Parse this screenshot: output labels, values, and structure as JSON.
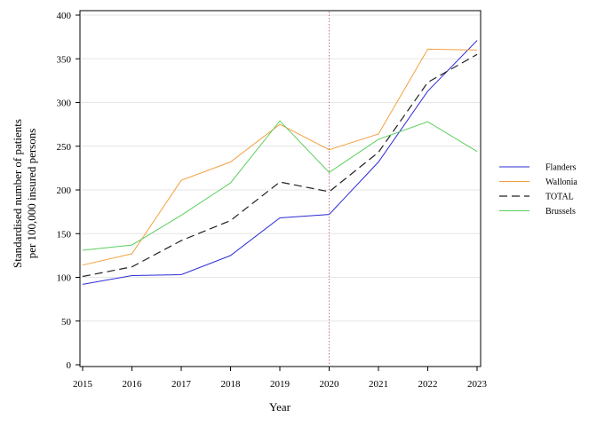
{
  "chart_data": {
    "type": "line",
    "xlabel": "Year",
    "ylabel_lines": [
      "Standardised number of patients",
      "per 100,000 insured persons"
    ],
    "x": [
      "2015",
      "2016",
      "2017",
      "2018",
      "2019",
      "2020",
      "2021",
      "2022",
      "2023"
    ],
    "yticks": [
      0,
      50,
      100,
      150,
      200,
      250,
      300,
      350,
      400
    ],
    "ylim": [
      0,
      400
    ],
    "grid": "horizontal",
    "legend_position": "right",
    "reference_line": {
      "x": "2020",
      "color": "#d46a7a",
      "style": "dotted"
    },
    "series": [
      {
        "name": "Flanders",
        "color": "#2b2bd6",
        "dash": "solid",
        "values": [
          92,
          102,
          103,
          125,
          168,
          172,
          232,
          313,
          371
        ]
      },
      {
        "name": "Wallonia",
        "color": "#f4a040",
        "dash": "solid",
        "values": [
          114,
          127,
          211,
          232,
          275,
          246,
          264,
          361,
          360
        ]
      },
      {
        "name": "TOTAL",
        "color": "#222222",
        "dash": "dashed",
        "values": [
          101,
          112,
          142,
          165,
          209,
          198,
          243,
          323,
          355
        ]
      },
      {
        "name": "Brussels",
        "color": "#5cce5c",
        "dash": "solid",
        "values": [
          131,
          137,
          171,
          208,
          279,
          220,
          258,
          278,
          244
        ]
      }
    ]
  }
}
